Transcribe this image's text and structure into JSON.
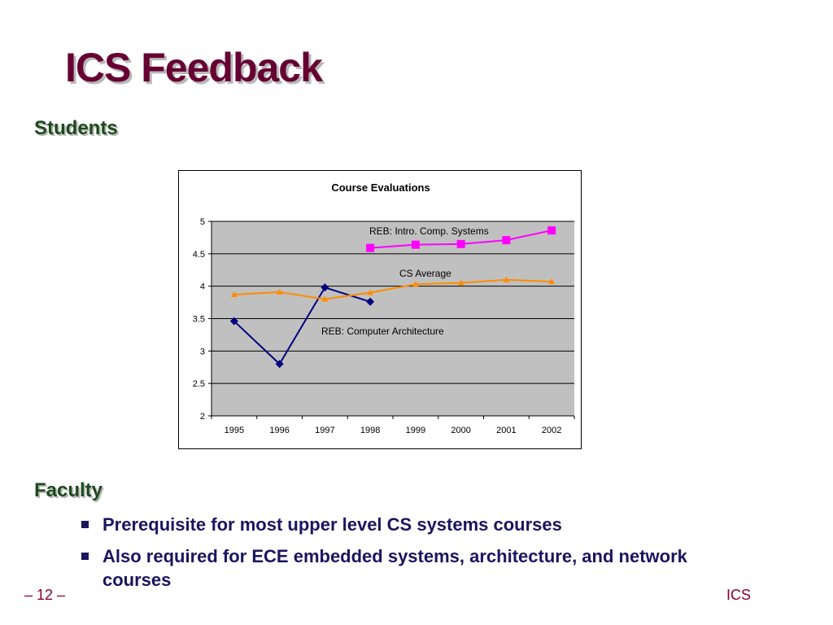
{
  "slide": {
    "title": "ICS Feedback",
    "students_heading": "Students",
    "faculty_heading": "Faculty",
    "bullets": [
      "Prerequisite for most upper level CS systems courses",
      "Also required for ECE embedded systems, architecture, and network courses"
    ],
    "footer_page": "– 12 –",
    "footer_label": "ICS"
  },
  "colors": {
    "title": "#660033",
    "heading": "#1e4a1e",
    "body_text": "#1a1560",
    "footer": "#880033",
    "plot_background": "#c0c0c0"
  },
  "chart_data": {
    "type": "line",
    "title": "Course Evaluations",
    "xlabel": "",
    "ylabel": "",
    "categories": [
      "1995",
      "1996",
      "1997",
      "1998",
      "1999",
      "2000",
      "2001",
      "2002"
    ],
    "ylim": [
      2,
      5
    ],
    "yticks": [
      "2",
      "2.5",
      "3",
      "3.5",
      "4",
      "4.5",
      "5"
    ],
    "grid": true,
    "legend": "none",
    "series": [
      {
        "name": "REB: Computer Architecture",
        "color": "#000080",
        "marker": "diamond",
        "values": [
          3.46,
          2.8,
          3.98,
          3.76,
          null,
          null,
          null,
          null
        ]
      },
      {
        "name": "CS Average",
        "color": "#ff8c00",
        "marker": "triangle",
        "values": [
          3.87,
          3.91,
          3.8,
          3.9,
          4.03,
          4.05,
          4.1,
          4.07
        ]
      },
      {
        "name": "REB: Intro. Comp. Systems",
        "color": "#ff00ff",
        "marker": "square",
        "values": [
          null,
          null,
          null,
          4.59,
          4.64,
          4.65,
          4.71,
          4.86
        ]
      }
    ]
  }
}
